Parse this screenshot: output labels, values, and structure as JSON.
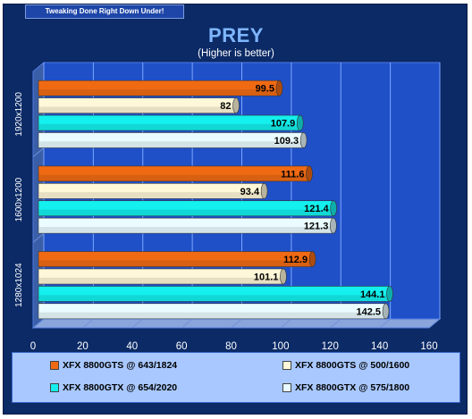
{
  "banner": "Tweaking Done Right Down Under!",
  "colors": {
    "frame_bg": "#0b2a66",
    "plot_bg": "#1f50c8",
    "gtx_cyan": "#13f0ee",
    "gts_orange": "#f06a14",
    "cream": "#fff8d8",
    "white_cyan": "#eafcff"
  },
  "chart_data": {
    "type": "bar",
    "orientation": "horizontal",
    "title": "PREY",
    "subtitle": "(Higher is better)",
    "categories": [
      "1920x1200",
      "1600x1200",
      "1280x1024"
    ],
    "series": [
      {
        "name": "XFX 8800GTS @ 643/1824",
        "color": "#f06a14",
        "values": [
          99.5,
          111.6,
          112.9
        ]
      },
      {
        "name": "XFX 8800GTS @ 500/1600",
        "color": "#fff8d8",
        "values": [
          82,
          93.4,
          101.1
        ]
      },
      {
        "name": "XFX 8800GTX @ 654/2020",
        "color": "#13f0ee",
        "values": [
          107.9,
          121.4,
          144.1
        ]
      },
      {
        "name": "XFX 8800GTX @ 575/1800",
        "color": "#eafcff",
        "values": [
          109.3,
          121.3,
          142.5
        ]
      }
    ],
    "xlim": [
      0,
      160
    ],
    "xticks": [
      0,
      20,
      40,
      60,
      80,
      100,
      120,
      140,
      160
    ],
    "grid": true,
    "legend_position": "bottom"
  }
}
